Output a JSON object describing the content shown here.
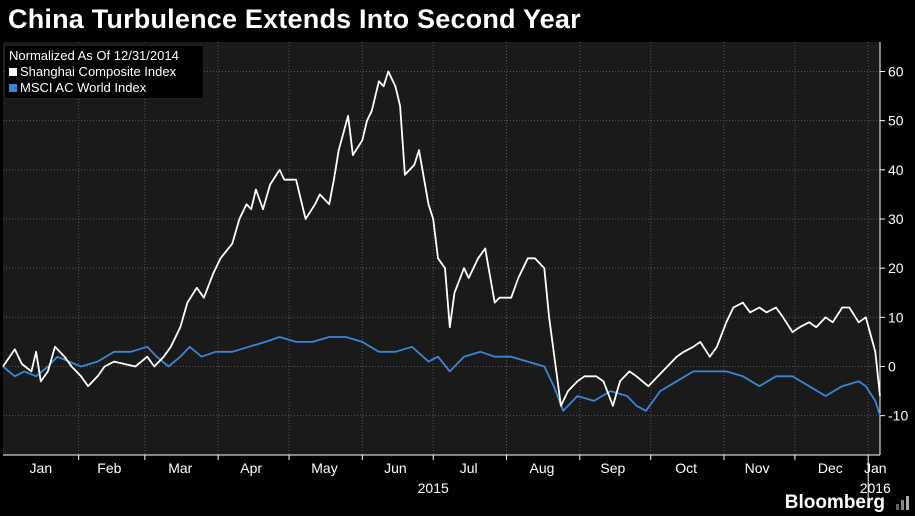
{
  "title": "China Turbulence Extends Into Second Year",
  "brand": "Bloomberg",
  "colors": {
    "background": "#000000",
    "plot_background": "#1a1a1a",
    "grid": "#555555",
    "shanghai": "#ffffff",
    "msci": "#3a86d6"
  },
  "chart_data": {
    "type": "line",
    "title": "China Turbulence Extends Into Second Year",
    "legend_title": "Normalized As Of 12/31/2014",
    "legend_position": "top-left",
    "grid": true,
    "y_axis_position": "right",
    "ylim": [
      -18,
      66
    ],
    "y_ticks": [
      60,
      50,
      40,
      30,
      20,
      10,
      0,
      -10
    ],
    "x_range": [
      "2014-12-31",
      "2016-01-06"
    ],
    "x_ticks": [
      {
        "label": "Jan",
        "date": "2015-01-16"
      },
      {
        "label": "Feb",
        "date": "2015-02-14"
      },
      {
        "label": "Mar",
        "date": "2015-03-16"
      },
      {
        "label": "Apr",
        "date": "2015-04-15"
      },
      {
        "label": "May",
        "date": "2015-05-16"
      },
      {
        "label": "Jun",
        "date": "2015-06-15"
      },
      {
        "label": "Jul",
        "date": "2015-07-16"
      },
      {
        "label": "Aug",
        "date": "2015-08-16"
      },
      {
        "label": "Sep",
        "date": "2015-09-15"
      },
      {
        "label": "Oct",
        "date": "2015-10-16"
      },
      {
        "label": "Nov",
        "date": "2015-11-15"
      },
      {
        "label": "Dec",
        "date": "2015-12-16"
      },
      {
        "label": "Jan",
        "date": "2016-01-04"
      }
    ],
    "year_labels": [
      {
        "label": "2015",
        "date": "2015-07-01"
      },
      {
        "label": "2016",
        "date": "2016-01-04"
      }
    ],
    "series": [
      {
        "name": "Shanghai Composite Index",
        "color": "#ffffff",
        "points": [
          [
            "2014-12-31",
            0
          ],
          [
            "2015-01-05",
            3.5
          ],
          [
            "2015-01-08",
            0.5
          ],
          [
            "2015-01-12",
            -1
          ],
          [
            "2015-01-14",
            3
          ],
          [
            "2015-01-16",
            -3
          ],
          [
            "2015-01-19",
            -1
          ],
          [
            "2015-01-22",
            4
          ],
          [
            "2015-01-26",
            2
          ],
          [
            "2015-01-29",
            0
          ],
          [
            "2015-02-02",
            -2
          ],
          [
            "2015-02-05",
            -4
          ],
          [
            "2015-02-09",
            -2
          ],
          [
            "2015-02-12",
            0
          ],
          [
            "2015-02-16",
            1
          ],
          [
            "2015-02-25",
            0
          ],
          [
            "2015-03-02",
            2
          ],
          [
            "2015-03-05",
            0
          ],
          [
            "2015-03-09",
            2
          ],
          [
            "2015-03-12",
            4
          ],
          [
            "2015-03-16",
            8
          ],
          [
            "2015-03-19",
            13
          ],
          [
            "2015-03-23",
            16
          ],
          [
            "2015-03-26",
            14
          ],
          [
            "2015-03-30",
            19
          ],
          [
            "2015-04-02",
            22
          ],
          [
            "2015-04-07",
            25
          ],
          [
            "2015-04-10",
            30
          ],
          [
            "2015-04-13",
            33
          ],
          [
            "2015-04-15",
            32
          ],
          [
            "2015-04-17",
            36
          ],
          [
            "2015-04-20",
            32
          ],
          [
            "2015-04-23",
            37
          ],
          [
            "2015-04-27",
            40
          ],
          [
            "2015-04-29",
            38
          ],
          [
            "2015-05-04",
            38
          ],
          [
            "2015-05-06",
            34
          ],
          [
            "2015-05-08",
            30
          ],
          [
            "2015-05-12",
            33
          ],
          [
            "2015-05-14",
            35
          ],
          [
            "2015-05-18",
            33
          ],
          [
            "2015-05-20",
            38
          ],
          [
            "2015-05-22",
            44
          ],
          [
            "2015-05-26",
            51
          ],
          [
            "2015-05-28",
            43
          ],
          [
            "2015-06-01",
            46
          ],
          [
            "2015-06-03",
            50
          ],
          [
            "2015-06-05",
            52
          ],
          [
            "2015-06-08",
            58
          ],
          [
            "2015-06-10",
            57
          ],
          [
            "2015-06-12",
            60
          ],
          [
            "2015-06-15",
            57
          ],
          [
            "2015-06-17",
            53
          ],
          [
            "2015-06-19",
            39
          ],
          [
            "2015-06-23",
            41
          ],
          [
            "2015-06-25",
            44
          ],
          [
            "2015-06-29",
            33
          ],
          [
            "2015-07-01",
            30
          ],
          [
            "2015-07-03",
            22
          ],
          [
            "2015-07-06",
            20
          ],
          [
            "2015-07-08",
            8
          ],
          [
            "2015-07-10",
            15
          ],
          [
            "2015-07-14",
            20
          ],
          [
            "2015-07-16",
            18
          ],
          [
            "2015-07-20",
            22
          ],
          [
            "2015-07-23",
            24
          ],
          [
            "2015-07-27",
            13
          ],
          [
            "2015-07-29",
            14
          ],
          [
            "2015-08-03",
            14
          ],
          [
            "2015-08-06",
            18
          ],
          [
            "2015-08-10",
            22
          ],
          [
            "2015-08-13",
            22
          ],
          [
            "2015-08-17",
            20
          ],
          [
            "2015-08-19",
            10
          ],
          [
            "2015-08-24",
            -8
          ],
          [
            "2015-08-27",
            -5
          ],
          [
            "2015-08-31",
            -3
          ],
          [
            "2015-09-03",
            -2
          ],
          [
            "2015-09-08",
            -2
          ],
          [
            "2015-09-11",
            -3
          ],
          [
            "2015-09-15",
            -8
          ],
          [
            "2015-09-18",
            -3
          ],
          [
            "2015-09-22",
            -1
          ],
          [
            "2015-09-25",
            -2
          ],
          [
            "2015-09-30",
            -4
          ],
          [
            "2015-10-08",
            0
          ],
          [
            "2015-10-12",
            2
          ],
          [
            "2015-10-15",
            3
          ],
          [
            "2015-10-19",
            4
          ],
          [
            "2015-10-22",
            5
          ],
          [
            "2015-10-26",
            2
          ],
          [
            "2015-10-29",
            4
          ],
          [
            "2015-11-02",
            9
          ],
          [
            "2015-11-05",
            12
          ],
          [
            "2015-11-09",
            13
          ],
          [
            "2015-11-12",
            11
          ],
          [
            "2015-11-16",
            12
          ],
          [
            "2015-11-19",
            11
          ],
          [
            "2015-11-23",
            12
          ],
          [
            "2015-11-26",
            10
          ],
          [
            "2015-11-30",
            7
          ],
          [
            "2015-12-03",
            8
          ],
          [
            "2015-12-07",
            9
          ],
          [
            "2015-12-10",
            8
          ],
          [
            "2015-12-14",
            10
          ],
          [
            "2015-12-17",
            9
          ],
          [
            "2015-12-21",
            12
          ],
          [
            "2015-12-24",
            12
          ],
          [
            "2015-12-28",
            9
          ],
          [
            "2015-12-31",
            10
          ],
          [
            "2016-01-04",
            3
          ],
          [
            "2016-01-06",
            -6
          ]
        ]
      },
      {
        "name": "MSCI AC World Index",
        "color": "#3a86d6",
        "points": [
          [
            "2014-12-31",
            0
          ],
          [
            "2015-01-05",
            -2
          ],
          [
            "2015-01-09",
            -1
          ],
          [
            "2015-01-14",
            -2
          ],
          [
            "2015-01-19",
            0
          ],
          [
            "2015-01-23",
            2
          ],
          [
            "2015-01-28",
            1
          ],
          [
            "2015-02-02",
            0
          ],
          [
            "2015-02-09",
            1
          ],
          [
            "2015-02-16",
            3
          ],
          [
            "2015-02-23",
            3
          ],
          [
            "2015-03-02",
            4
          ],
          [
            "2015-03-06",
            2
          ],
          [
            "2015-03-11",
            0
          ],
          [
            "2015-03-16",
            2
          ],
          [
            "2015-03-20",
            4
          ],
          [
            "2015-03-25",
            2
          ],
          [
            "2015-03-31",
            3
          ],
          [
            "2015-04-07",
            3
          ],
          [
            "2015-04-14",
            4
          ],
          [
            "2015-04-21",
            5
          ],
          [
            "2015-04-27",
            6
          ],
          [
            "2015-05-04",
            5
          ],
          [
            "2015-05-11",
            5
          ],
          [
            "2015-05-18",
            6
          ],
          [
            "2015-05-25",
            6
          ],
          [
            "2015-06-01",
            5
          ],
          [
            "2015-06-08",
            3
          ],
          [
            "2015-06-15",
            3
          ],
          [
            "2015-06-22",
            4
          ],
          [
            "2015-06-29",
            1
          ],
          [
            "2015-07-03",
            2
          ],
          [
            "2015-07-08",
            -1
          ],
          [
            "2015-07-14",
            2
          ],
          [
            "2015-07-21",
            3
          ],
          [
            "2015-07-27",
            2
          ],
          [
            "2015-08-03",
            2
          ],
          [
            "2015-08-10",
            1
          ],
          [
            "2015-08-17",
            0
          ],
          [
            "2015-08-21",
            -4
          ],
          [
            "2015-08-25",
            -9
          ],
          [
            "2015-08-31",
            -6
          ],
          [
            "2015-09-07",
            -7
          ],
          [
            "2015-09-14",
            -5
          ],
          [
            "2015-09-21",
            -6
          ],
          [
            "2015-09-25",
            -8
          ],
          [
            "2015-09-29",
            -9
          ],
          [
            "2015-10-05",
            -5
          ],
          [
            "2015-10-12",
            -3
          ],
          [
            "2015-10-19",
            -1
          ],
          [
            "2015-10-26",
            -1
          ],
          [
            "2015-11-02",
            -1
          ],
          [
            "2015-11-09",
            -2
          ],
          [
            "2015-11-16",
            -4
          ],
          [
            "2015-11-23",
            -2
          ],
          [
            "2015-11-30",
            -2
          ],
          [
            "2015-12-07",
            -4
          ],
          [
            "2015-12-14",
            -6
          ],
          [
            "2015-12-21",
            -4
          ],
          [
            "2015-12-28",
            -3
          ],
          [
            "2015-12-31",
            -4
          ],
          [
            "2016-01-04",
            -7
          ],
          [
            "2016-01-06",
            -10
          ]
        ]
      }
    ]
  }
}
